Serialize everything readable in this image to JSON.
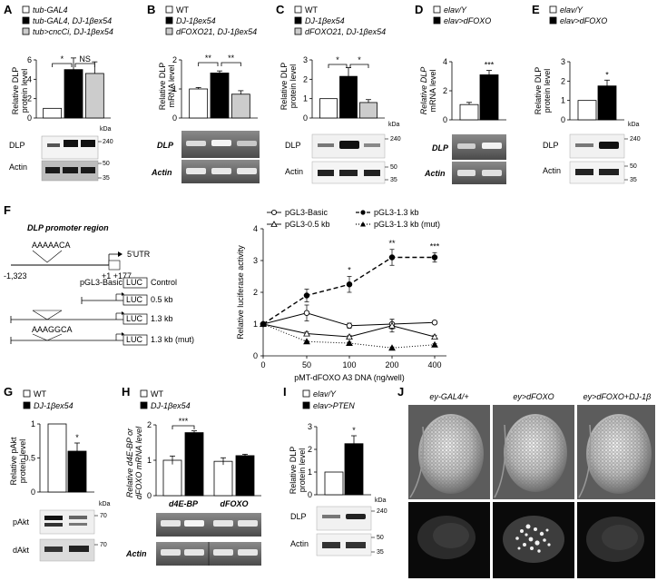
{
  "panel_letters": [
    "A",
    "B",
    "C",
    "D",
    "E",
    "F",
    "G",
    "H",
    "I",
    "J"
  ],
  "common": {
    "kda": "kDa",
    "ns": "NS",
    "star1": "*",
    "star2": "**",
    "star3": "***",
    "dlp": "DLP",
    "actin": "Actin",
    "dlp_it": "DLP",
    "actin_it": "Actin"
  },
  "panels": {
    "A": {
      "legend": [
        "tub-GAL4",
        "tub-GAL4, DJ-1βex54",
        "tub>cncCi, DJ-1βex54"
      ],
      "ylabel": [
        "Relative DLP",
        "protein level"
      ],
      "markers": [
        "240",
        "50",
        "35"
      ]
    },
    "B": {
      "legend": [
        "WT",
        "DJ-1βex54",
        "dFOXO21, DJ-1βex54"
      ],
      "ylabel": [
        "Relative DLP",
        "mRNA level"
      ]
    },
    "C": {
      "legend": [
        "WT",
        "DJ-1βex54",
        "dFOXO21, DJ-1βex54"
      ],
      "ylabel": [
        "Relative DLP",
        "protein level"
      ],
      "markers": [
        "240",
        "50",
        "35"
      ]
    },
    "D": {
      "legend": [
        "elav/Y",
        "elav>dFOXO"
      ],
      "ylabel": [
        "Relative DLP",
        "mRNA level"
      ]
    },
    "E": {
      "legend": [
        "elav/Y",
        "elav>dFOXO"
      ],
      "ylabel": [
        "Relative DLP",
        "protein level"
      ],
      "markers": [
        "240",
        "50",
        "35"
      ]
    },
    "F": {
      "promoter_title": "DLP promoter region",
      "seq_wt": "AAAAACA",
      "seq_mut": "AAAGGCA",
      "utr": "5'UTR",
      "pos_left": "-1,323",
      "pos_right": "+1  +177",
      "luc": "LUC",
      "basic": "pGL3-Basic",
      "constructs": [
        "Control",
        "0.5 kb",
        "1.3 kb",
        "1.3 kb (mut)"
      ],
      "legend": [
        "pGL3-Basic",
        "pGL3-1.3 kb",
        "pGL3-0.5 kb",
        "pGL3-1.3 kb (mut)"
      ]
    },
    "G": {
      "legend": [
        "WT",
        "DJ-1βex54"
      ],
      "ylabel": [
        "Relative pAkt",
        "protein level"
      ],
      "bands": [
        "pAkt",
        "dAkt"
      ],
      "markers": [
        "70",
        "70"
      ]
    },
    "H": {
      "legend": [
        "WT",
        "DJ-1βex54"
      ],
      "ylabel": [
        "Relative d4E-BP or",
        "dFOXO mRNA level"
      ],
      "gene_labels": [
        "d4E-BP",
        "dFOXO"
      ]
    },
    "I": {
      "legend": [
        "elav/Y",
        "elav>PTEN"
      ],
      "ylabel": [
        "Relative DLP",
        "protein level"
      ],
      "markers": [
        "240",
        "50",
        "35"
      ]
    },
    "J": {
      "titles": [
        "ey-GAL4/+",
        "ey>dFOXO",
        "ey>dFOXO+DJ-1β"
      ]
    }
  },
  "chart_data": [
    {
      "panel": "A",
      "type": "bar",
      "categories": [
        "tub-GAL4",
        "tub-GAL4, DJ-1βex54",
        "tub>cncCi, DJ-1βex54"
      ],
      "values": [
        1,
        5.0,
        4.6
      ],
      "errors": [
        0,
        1.2,
        1.2
      ],
      "ylim": [
        0,
        6
      ],
      "yticks": [
        "0",
        "2",
        "4",
        "6"
      ],
      "colors": [
        "#ffffff",
        "#000000",
        "#cccccc"
      ]
    },
    {
      "panel": "B",
      "type": "bar",
      "categories": [
        "WT",
        "DJ-1βex54",
        "dFOXO21, DJ-1βex54"
      ],
      "values": [
        1.0,
        1.55,
        0.82
      ],
      "errors": [
        0.05,
        0.07,
        0.12
      ],
      "ylim": [
        0,
        2
      ],
      "yticks": [
        "0",
        "1",
        "2"
      ],
      "colors": [
        "#ffffff",
        "#000000",
        "#cccccc"
      ]
    },
    {
      "panel": "C",
      "type": "bar",
      "categories": [
        "WT",
        "DJ-1βex54",
        "dFOXO21, DJ-1βex54"
      ],
      "values": [
        1.0,
        2.15,
        0.8
      ],
      "errors": [
        0,
        0.45,
        0.15
      ],
      "ylim": [
        0,
        3
      ],
      "yticks": [
        "0",
        "1",
        "2",
        "3"
      ],
      "colors": [
        "#ffffff",
        "#000000",
        "#cccccc"
      ]
    },
    {
      "panel": "D",
      "type": "bar",
      "categories": [
        "elav/Y",
        "elav>dFOXO"
      ],
      "values": [
        1.05,
        3.1
      ],
      "errors": [
        0.15,
        0.3
      ],
      "ylim": [
        0,
        4
      ],
      "yticks": [
        "0",
        "2",
        "4"
      ],
      "colors": [
        "#ffffff",
        "#000000"
      ]
    },
    {
      "panel": "E",
      "type": "bar",
      "categories": [
        "elav/Y",
        "elav>dFOXO"
      ],
      "values": [
        1.0,
        1.75
      ],
      "errors": [
        0,
        0.3
      ],
      "ylim": [
        0,
        3
      ],
      "yticks": [
        "0",
        "1",
        "2",
        "3"
      ],
      "colors": [
        "#ffffff",
        "#000000"
      ]
    },
    {
      "panel": "F",
      "type": "line",
      "x": [
        0,
        50,
        100,
        200,
        400
      ],
      "xlabel": "pMT-dFOXO A3 DNA (ng/well)",
      "ylabel": "Relative luciferase activity",
      "ylim": [
        0,
        4
      ],
      "yticks": [
        "0",
        "1",
        "2",
        "3",
        "4"
      ],
      "xticks": [
        "0",
        "50",
        "100",
        "200",
        "400"
      ],
      "series": [
        {
          "name": "pGL3-Basic",
          "values": [
            1,
            1.35,
            0.95,
            1.0,
            1.05
          ],
          "errors": [
            0,
            0.25,
            0.08,
            0.15,
            0.05
          ],
          "style": "solid-open-circle"
        },
        {
          "name": "pGL3-0.5 kb",
          "values": [
            1,
            0.7,
            0.6,
            0.95,
            0.6
          ],
          "errors": [
            0,
            0.05,
            0.05,
            0.2,
            0.05
          ],
          "style": "solid-open-triangle"
        },
        {
          "name": "pGL3-1.3 kb",
          "values": [
            1,
            1.9,
            2.25,
            3.1,
            3.1
          ],
          "errors": [
            0,
            0.2,
            0.25,
            0.25,
            0.15
          ],
          "style": "dashed-filled-circle"
        },
        {
          "name": "pGL3-1.3 kb (mut)",
          "values": [
            1,
            0.45,
            0.4,
            0.25,
            0.35
          ],
          "errors": [
            0,
            0.03,
            0.03,
            0.03,
            0.03
          ],
          "style": "dotted-filled-triangle"
        }
      ],
      "annotations": [
        {
          "x": 100,
          "text": "*"
        },
        {
          "x": 200,
          "text": "**"
        },
        {
          "x": 400,
          "text": "***"
        }
      ]
    },
    {
      "panel": "G",
      "type": "bar",
      "categories": [
        "WT",
        "DJ-1βex54"
      ],
      "values": [
        1.0,
        0.6
      ],
      "errors": [
        0,
        0.12
      ],
      "ylim": [
        0,
        1
      ],
      "yticks": [
        "0",
        "0.5",
        "1"
      ],
      "colors": [
        "#ffffff",
        "#000000"
      ]
    },
    {
      "panel": "H",
      "type": "bar",
      "categories": [
        "d4E-BP",
        "dFOXO"
      ],
      "series": [
        {
          "name": "WT",
          "values": [
            1.0,
            0.97
          ]
        },
        {
          "name": "DJ-1βex54",
          "values": [
            1.78,
            1.13
          ]
        }
      ],
      "errors": [
        [
          0.12,
          0.1
        ],
        [
          0.05,
          0.04
        ]
      ],
      "ylim": [
        0,
        2
      ],
      "yticks": [
        "0",
        "1",
        "2"
      ]
    },
    {
      "panel": "I",
      "type": "bar",
      "categories": [
        "elav/Y",
        "elav>PTEN"
      ],
      "values": [
        1.0,
        2.25
      ],
      "errors": [
        0,
        0.35
      ],
      "ylim": [
        0,
        3
      ],
      "yticks": [
        "0",
        "1",
        "2",
        "3"
      ],
      "colors": [
        "#ffffff",
        "#000000"
      ]
    }
  ]
}
